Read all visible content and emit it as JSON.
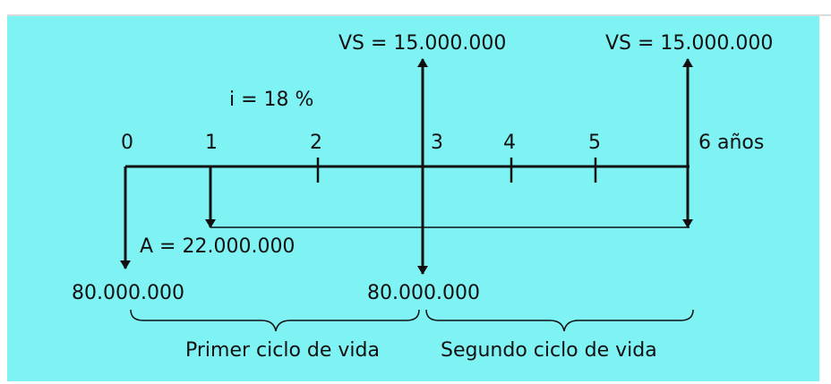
{
  "colors": {
    "background": "#7ff3f4",
    "ink": "#111111",
    "frame_line": "#cfcfcf"
  },
  "diagram": {
    "interest_rate": "i = 18 %",
    "salvage_value_1": "VS = 15.000.000",
    "salvage_value_2": "VS = 15.000.000",
    "annuity": "A = 22.000.000",
    "investment_1": "80.000.000",
    "investment_2": "80.000.000",
    "periods": [
      "0",
      "1",
      "2",
      "3",
      "4",
      "5",
      "6 años"
    ],
    "first_cycle": "Primer ciclo de vida",
    "second_cycle": "Segundo ciclo de vida"
  }
}
